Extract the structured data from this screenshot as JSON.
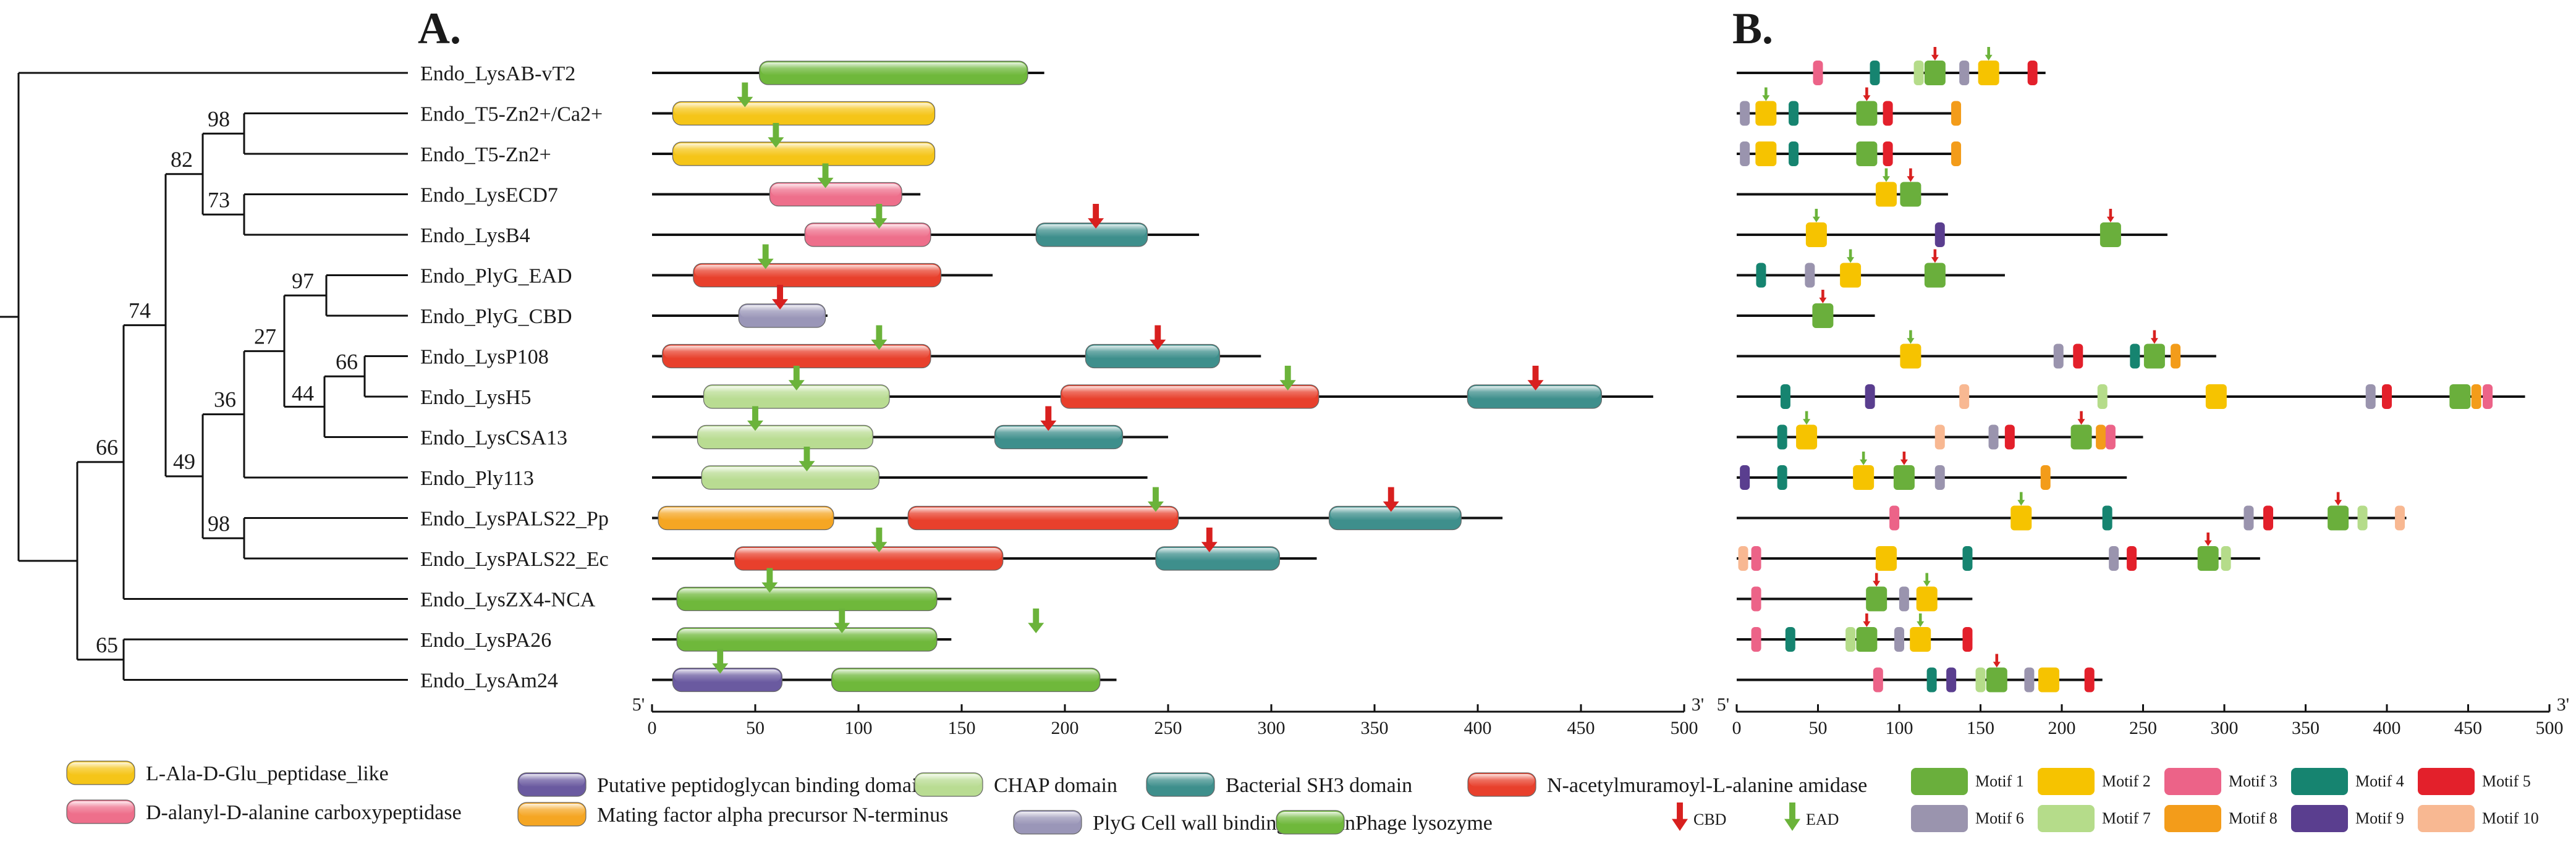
{
  "panels": {
    "a": "A.",
    "b": "B."
  },
  "colors": {
    "ala_glu": "#f5c518",
    "carboxy": "#ee6f8b",
    "pgbind": "#6a5aa0",
    "mating": "#f5a623",
    "chap": "#b9dc92",
    "plyg_cbd": "#9a96b8",
    "sh3": "#3e8f8c",
    "nam": "#e8402c",
    "phage_lys": "#6fb83b",
    "arrow_cbd": "#d8201f",
    "arrow_ead": "#6bb33a",
    "m1": "#6aaf3c",
    "m2": "#f6c300",
    "m3": "#ec6388",
    "m4": "#168470",
    "m5": "#e3202b",
    "m6": "#9a94ae",
    "m7": "#b5dc8a",
    "m8": "#f39c1a",
    "m9": "#5a3e8f",
    "m10": "#f8b892"
  },
  "tree": {
    "bootstraps": [
      "98",
      "82",
      "73",
      "97",
      "74",
      "27",
      "66",
      "44",
      "36",
      "49",
      "66",
      "98",
      "65"
    ]
  },
  "axis_a": {
    "start_label": "5'",
    "end_label": "3'",
    "ticks": [
      "0",
      "50",
      "100",
      "150",
      "200",
      "250",
      "300",
      "350",
      "400",
      "450",
      "500"
    ]
  },
  "axis_b": {
    "start_label": "5'",
    "end_label": "3'",
    "ticks": [
      "0",
      "50",
      "100",
      "150",
      "200",
      "250",
      "300",
      "350",
      "400",
      "450",
      "500"
    ]
  },
  "proteins": [
    {
      "name": "Endo_LysAB-vT2",
      "length": 190,
      "domains": [
        {
          "type": "phage_lys",
          "start": 52,
          "end": 182
        }
      ],
      "arrows": [],
      "motifs": [
        {
          "m": 3,
          "pos": 50
        },
        {
          "m": 4,
          "pos": 85
        },
        {
          "m": 7,
          "pos": 112
        },
        {
          "m": 1,
          "pos": 122
        },
        {
          "m": 6,
          "pos": 140
        },
        {
          "m": 2,
          "pos": 155
        },
        {
          "m": 5,
          "pos": 182
        }
      ],
      "motif_arrows": [
        {
          "t": "cbd",
          "pos": 122
        },
        {
          "t": "ead",
          "pos": 155
        }
      ]
    },
    {
      "name": "Endo_T5-Zn2+/Ca2+",
      "length": 137,
      "domains": [
        {
          "type": "ala_glu",
          "start": 10,
          "end": 137
        }
      ],
      "arrows": [
        {
          "t": "ead",
          "pos": 45
        }
      ],
      "motifs": [
        {
          "m": 6,
          "pos": 5
        },
        {
          "m": 2,
          "pos": 18
        },
        {
          "m": 4,
          "pos": 35
        },
        {
          "m": 1,
          "pos": 80
        },
        {
          "m": 5,
          "pos": 93
        },
        {
          "m": 8,
          "pos": 135
        }
      ],
      "motif_arrows": [
        {
          "t": "ead",
          "pos": 18
        },
        {
          "t": "cbd",
          "pos": 80
        }
      ]
    },
    {
      "name": "Endo_T5-Zn2+",
      "length": 137,
      "domains": [
        {
          "type": "ala_glu",
          "start": 10,
          "end": 137
        }
      ],
      "arrows": [
        {
          "t": "ead",
          "pos": 60
        }
      ],
      "motifs": [
        {
          "m": 6,
          "pos": 5
        },
        {
          "m": 2,
          "pos": 18
        },
        {
          "m": 4,
          "pos": 35
        },
        {
          "m": 1,
          "pos": 80
        },
        {
          "m": 5,
          "pos": 93
        },
        {
          "m": 8,
          "pos": 135
        }
      ],
      "motif_arrows": []
    },
    {
      "name": "Endo_LysECD7",
      "length": 130,
      "domains": [
        {
          "type": "carboxy",
          "start": 57,
          "end": 121
        }
      ],
      "arrows": [
        {
          "t": "ead",
          "pos": 84
        }
      ],
      "motifs": [
        {
          "m": 2,
          "pos": 92
        },
        {
          "m": 1,
          "pos": 107
        }
      ],
      "motif_arrows": [
        {
          "t": "ead",
          "pos": 92
        },
        {
          "t": "cbd",
          "pos": 107
        }
      ]
    },
    {
      "name": "Endo_LysB4",
      "length": 265,
      "domains": [
        {
          "type": "carboxy",
          "start": 74,
          "end": 135
        },
        {
          "type": "sh3",
          "start": 186,
          "end": 240
        }
      ],
      "arrows": [
        {
          "t": "ead",
          "pos": 110
        },
        {
          "t": "cbd",
          "pos": 215
        }
      ],
      "motifs": [
        {
          "m": 2,
          "pos": 49
        },
        {
          "m": 9,
          "pos": 125
        },
        {
          "m": 1,
          "pos": 230
        }
      ],
      "motif_arrows": [
        {
          "t": "ead",
          "pos": 49
        },
        {
          "t": "cbd",
          "pos": 230
        }
      ]
    },
    {
      "name": "Endo_PlyG_EAD",
      "length": 165,
      "domains": [
        {
          "type": "nam",
          "start": 20,
          "end": 140
        }
      ],
      "arrows": [
        {
          "t": "ead",
          "pos": 55
        }
      ],
      "motifs": [
        {
          "m": 4,
          "pos": 15
        },
        {
          "m": 6,
          "pos": 45
        },
        {
          "m": 2,
          "pos": 70
        },
        {
          "m": 1,
          "pos": 122
        }
      ],
      "motif_arrows": [
        {
          "t": "ead",
          "pos": 70
        },
        {
          "t": "cbd",
          "pos": 122
        }
      ]
    },
    {
      "name": "Endo_PlyG_CBD",
      "length": 85,
      "domains": [
        {
          "type": "plyg_cbd",
          "start": 42,
          "end": 84
        }
      ],
      "arrows": [
        {
          "t": "cbd",
          "pos": 62
        }
      ],
      "motifs": [
        {
          "m": 1,
          "pos": 53
        }
      ],
      "motif_arrows": [
        {
          "t": "cbd",
          "pos": 53
        }
      ]
    },
    {
      "name": "Endo_LysP108",
      "length": 295,
      "domains": [
        {
          "type": "nam",
          "start": 5,
          "end": 135
        },
        {
          "type": "sh3",
          "start": 210,
          "end": 275
        }
      ],
      "arrows": [
        {
          "t": "ead",
          "pos": 110
        },
        {
          "t": "cbd",
          "pos": 245
        }
      ],
      "motifs": [
        {
          "m": 2,
          "pos": 107
        },
        {
          "m": 6,
          "pos": 198
        },
        {
          "m": 5,
          "pos": 210
        },
        {
          "m": 4,
          "pos": 245
        },
        {
          "m": 1,
          "pos": 257
        },
        {
          "m": 8,
          "pos": 270
        }
      ],
      "motif_arrows": [
        {
          "t": "ead",
          "pos": 107
        },
        {
          "t": "cbd",
          "pos": 257
        }
      ]
    },
    {
      "name": "Endo_LysH5",
      "length": 485,
      "domains": [
        {
          "type": "chap",
          "start": 25,
          "end": 115
        },
        {
          "type": "nam",
          "start": 198,
          "end": 323
        },
        {
          "type": "sh3",
          "start": 395,
          "end": 460
        }
      ],
      "arrows": [
        {
          "t": "ead",
          "pos": 70
        },
        {
          "t": "ead",
          "pos": 308
        },
        {
          "t": "cbd",
          "pos": 428
        }
      ],
      "motifs": [
        {
          "m": 4,
          "pos": 30
        },
        {
          "m": 9,
          "pos": 82
        },
        {
          "m": 10,
          "pos": 140
        },
        {
          "m": 7,
          "pos": 225
        },
        {
          "m": 2,
          "pos": 295
        },
        {
          "m": 6,
          "pos": 390
        },
        {
          "m": 5,
          "pos": 400
        },
        {
          "m": 1,
          "pos": 445
        },
        {
          "m": 8,
          "pos": 455
        },
        {
          "m": 3,
          "pos": 462
        }
      ],
      "motif_arrows": []
    },
    {
      "name": "Endo_LysCSA13",
      "length": 250,
      "domains": [
        {
          "type": "chap",
          "start": 22,
          "end": 107
        },
        {
          "type": "sh3",
          "start": 166,
          "end": 228
        }
      ],
      "arrows": [
        {
          "t": "ead",
          "pos": 50
        },
        {
          "t": "cbd",
          "pos": 192
        }
      ],
      "motifs": [
        {
          "m": 4,
          "pos": 28
        },
        {
          "m": 2,
          "pos": 43
        },
        {
          "m": 10,
          "pos": 125
        },
        {
          "m": 6,
          "pos": 158
        },
        {
          "m": 5,
          "pos": 168
        },
        {
          "m": 1,
          "pos": 212
        },
        {
          "m": 8,
          "pos": 224
        },
        {
          "m": 3,
          "pos": 230
        }
      ],
      "motif_arrows": [
        {
          "t": "ead",
          "pos": 43
        },
        {
          "t": "cbd",
          "pos": 212
        }
      ]
    },
    {
      "name": "Endo_Ply113",
      "length": 240,
      "domains": [
        {
          "type": "chap",
          "start": 24,
          "end": 110
        }
      ],
      "arrows": [
        {
          "t": "ead",
          "pos": 75
        }
      ],
      "motifs": [
        {
          "m": 9,
          "pos": 5
        },
        {
          "m": 4,
          "pos": 28
        },
        {
          "m": 2,
          "pos": 78
        },
        {
          "m": 1,
          "pos": 103
        },
        {
          "m": 6,
          "pos": 125
        },
        {
          "m": 8,
          "pos": 190
        }
      ],
      "motif_arrows": [
        {
          "t": "ead",
          "pos": 78
        },
        {
          "t": "cbd",
          "pos": 103
        }
      ]
    },
    {
      "name": "Endo_LysPALS22_Pp",
      "length": 412,
      "domains": [
        {
          "type": "mating",
          "start": 3,
          "end": 88
        },
        {
          "type": "nam",
          "start": 124,
          "end": 255
        },
        {
          "type": "sh3",
          "start": 328,
          "end": 392
        }
      ],
      "arrows": [
        {
          "t": "ead",
          "pos": 244
        },
        {
          "t": "cbd",
          "pos": 358
        }
      ],
      "motifs": [
        {
          "m": 3,
          "pos": 97
        },
        {
          "m": 2,
          "pos": 175
        },
        {
          "m": 4,
          "pos": 228
        },
        {
          "m": 6,
          "pos": 315
        },
        {
          "m": 5,
          "pos": 327
        },
        {
          "m": 1,
          "pos": 370
        },
        {
          "m": 7,
          "pos": 385
        },
        {
          "m": 10,
          "pos": 408
        }
      ],
      "motif_arrows": [
        {
          "t": "ead",
          "pos": 175
        },
        {
          "t": "cbd",
          "pos": 370
        }
      ]
    },
    {
      "name": "Endo_LysPALS22_Ec",
      "length": 322,
      "domains": [
        {
          "type": "nam",
          "start": 40,
          "end": 170
        },
        {
          "type": "sh3",
          "start": 244,
          "end": 304
        }
      ],
      "arrows": [
        {
          "t": "ead",
          "pos": 110
        },
        {
          "t": "cbd",
          "pos": 270
        }
      ],
      "motifs": [
        {
          "m": 10,
          "pos": 4
        },
        {
          "m": 3,
          "pos": 12
        },
        {
          "m": 2,
          "pos": 92
        },
        {
          "m": 4,
          "pos": 142
        },
        {
          "m": 6,
          "pos": 232
        },
        {
          "m": 5,
          "pos": 243
        },
        {
          "m": 1,
          "pos": 290
        },
        {
          "m": 7,
          "pos": 301
        }
      ],
      "motif_arrows": [
        {
          "t": "cbd",
          "pos": 290
        }
      ]
    },
    {
      "name": "Endo_LysZX4-NCA",
      "length": 145,
      "domains": [
        {
          "type": "phage_lys",
          "start": 12,
          "end": 138
        }
      ],
      "arrows": [
        {
          "t": "ead",
          "pos": 57
        }
      ],
      "motifs": [
        {
          "m": 3,
          "pos": 12
        },
        {
          "m": 1,
          "pos": 86
        },
        {
          "m": 6,
          "pos": 103
        },
        {
          "m": 2,
          "pos": 117
        }
      ],
      "motif_arrows": [
        {
          "t": "cbd",
          "pos": 86
        },
        {
          "t": "ead",
          "pos": 117
        }
      ]
    },
    {
      "name": "Endo_LysPA26",
      "length": 145,
      "domains": [
        {
          "type": "phage_lys",
          "start": 12,
          "end": 138
        }
      ],
      "arrows": [
        {
          "t": "ead",
          "pos": 92
        },
        {
          "t": "ead",
          "pos": 186
        }
      ],
      "motifs": [
        {
          "m": 3,
          "pos": 12
        },
        {
          "m": 4,
          "pos": 33
        },
        {
          "m": 7,
          "pos": 70
        },
        {
          "m": 1,
          "pos": 80
        },
        {
          "m": 6,
          "pos": 100
        },
        {
          "m": 2,
          "pos": 113
        },
        {
          "m": 5,
          "pos": 142
        }
      ],
      "motif_arrows": [
        {
          "t": "cbd",
          "pos": 80
        },
        {
          "t": "ead",
          "pos": 113
        }
      ]
    },
    {
      "name": "Endo_LysAm24",
      "length": 225,
      "domains": [
        {
          "type": "pgbind",
          "start": 10,
          "end": 63
        },
        {
          "type": "phage_lys",
          "start": 87,
          "end": 217
        }
      ],
      "arrows": [
        {
          "t": "ead",
          "pos": 33
        }
      ],
      "motifs": [
        {
          "m": 3,
          "pos": 87
        },
        {
          "m": 4,
          "pos": 120
        },
        {
          "m": 9,
          "pos": 132
        },
        {
          "m": 7,
          "pos": 150
        },
        {
          "m": 1,
          "pos": 160
        },
        {
          "m": 6,
          "pos": 180
        },
        {
          "m": 2,
          "pos": 192
        },
        {
          "m": 5,
          "pos": 217
        }
      ],
      "motif_arrows": [
        {
          "t": "cbd",
          "pos": 160
        }
      ]
    }
  ],
  "legend": {
    "domains": [
      {
        "type": "ala_glu",
        "label": "L-Ala-D-Glu_peptidase_like"
      },
      {
        "type": "pgbind",
        "label": "Putative peptidoglycan binding domain"
      },
      {
        "type": "chap",
        "label": "CHAP domain"
      },
      {
        "type": "sh3",
        "label": "Bacterial SH3 domain"
      },
      {
        "type": "nam",
        "label": "N-acetylmuramoyl-L-alanine amidase"
      },
      {
        "type": "carboxy",
        "label": "D-alanyl-D-alanine carboxypeptidase"
      },
      {
        "type": "mating",
        "label": "Mating factor alpha precursor N-terminus"
      },
      {
        "type": "plyg_cbd",
        "label": "PlyG Cell wall binding domain"
      },
      {
        "type": "phage_lys",
        "label": "Phage lysozyme"
      }
    ],
    "cbd_label": "CBD",
    "ead_label": "EAD",
    "motifs": [
      "Motif 1",
      "Motif 2",
      "Motif 3",
      "Motif 4",
      "Motif 5",
      "Motif 6",
      "Motif 7",
      "Motif 8",
      "Motif 9",
      "Motif 10"
    ]
  }
}
